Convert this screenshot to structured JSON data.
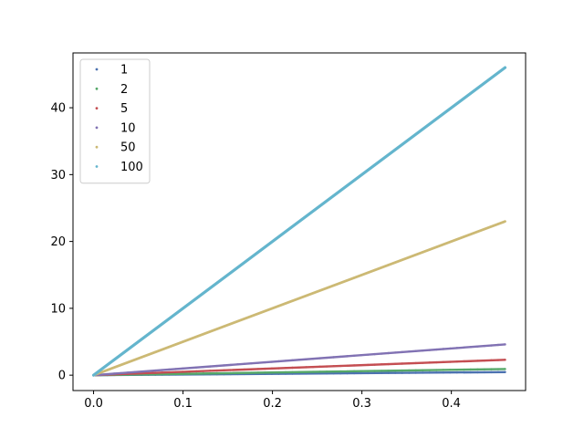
{
  "chart_data": {
    "type": "scatter",
    "title": "",
    "xlabel": "",
    "ylabel": "",
    "xlim": [
      -0.023,
      0.483
    ],
    "ylim": [
      -2.3,
      48.2
    ],
    "xticks": [
      0.0,
      0.1,
      0.2,
      0.3,
      0.4
    ],
    "xtick_labels": [
      "0.0",
      "0.1",
      "0.2",
      "0.3",
      "0.4"
    ],
    "yticks": [
      0,
      10,
      20,
      30,
      40
    ],
    "ytick_labels": [
      "0",
      "10",
      "20",
      "30",
      "40"
    ],
    "grid": false,
    "legend_position": "upper-left",
    "x_range": [
      0.0,
      0.46
    ],
    "series": [
      {
        "name": "1",
        "color": "#4c72b0",
        "x": [
          0.0,
          0.46
        ],
        "y": [
          0.0,
          0.46
        ]
      },
      {
        "name": "2",
        "color": "#55a868",
        "x": [
          0.0,
          0.46
        ],
        "y": [
          0.0,
          0.92
        ]
      },
      {
        "name": "5",
        "color": "#c44e52",
        "x": [
          0.0,
          0.46
        ],
        "y": [
          0.0,
          2.3
        ]
      },
      {
        "name": "10",
        "color": "#8172b3",
        "x": [
          0.0,
          0.46
        ],
        "y": [
          0.0,
          4.6
        ]
      },
      {
        "name": "50",
        "color": "#ccb974",
        "x": [
          0.0,
          0.46
        ],
        "y": [
          0.0,
          23.0
        ]
      },
      {
        "name": "100",
        "color": "#64b5cd",
        "x": [
          0.0,
          0.46
        ],
        "y": [
          0.0,
          46.0
        ]
      }
    ]
  }
}
